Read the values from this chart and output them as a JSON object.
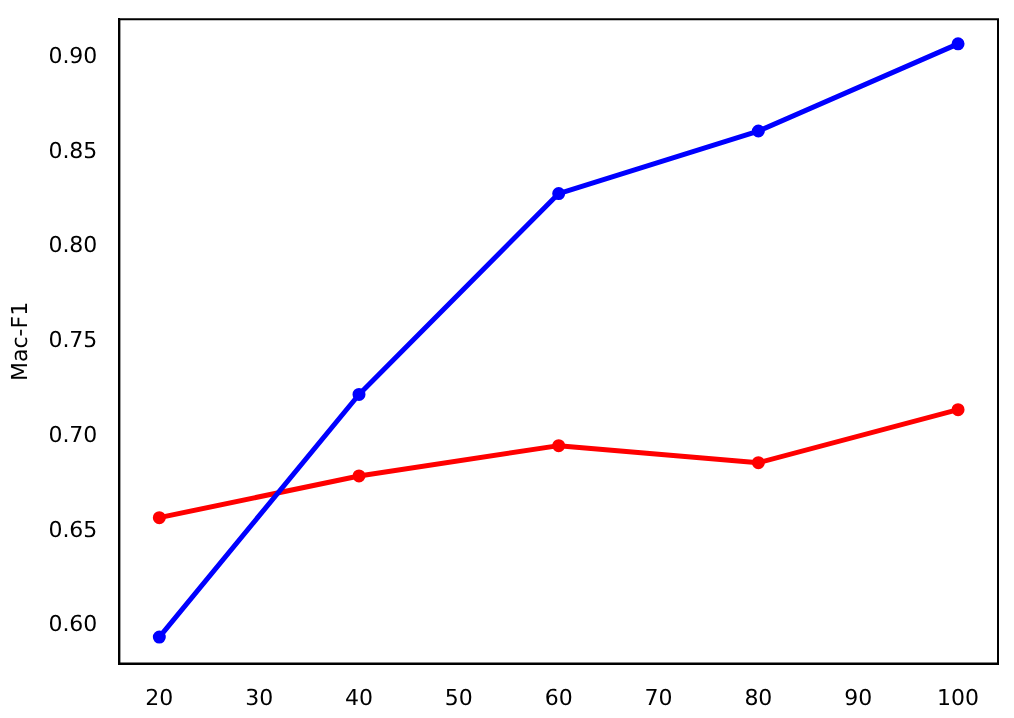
{
  "chart_data": {
    "type": "line",
    "ylabel": "Mac-F1",
    "x": [
      20,
      40,
      60,
      80,
      100
    ],
    "series": [
      {
        "color": "#0000ff",
        "values": [
          0.594,
          0.722,
          0.828,
          0.861,
          0.907
        ]
      },
      {
        "color": "#ff0000",
        "values": [
          0.657,
          0.679,
          0.695,
          0.686,
          0.714
        ]
      }
    ],
    "xlim": [
      16,
      104
    ],
    "xticks": [
      20,
      30,
      40,
      50,
      60,
      70,
      80,
      90,
      100
    ],
    "ylim": [
      0.58,
      0.92
    ],
    "yticks": [
      {
        "value": 0.6,
        "label": "0.60"
      },
      {
        "value": 0.65,
        "label": "0.65"
      },
      {
        "value": 0.7,
        "label": "0.70"
      },
      {
        "value": 0.75,
        "label": "0.75"
      },
      {
        "value": 0.8,
        "label": "0.80"
      },
      {
        "value": 0.85,
        "label": "0.85"
      },
      {
        "value": 0.9,
        "label": "0.90"
      }
    ],
    "grid": false,
    "legend": false,
    "marker": "circle",
    "line_style": "solid"
  }
}
